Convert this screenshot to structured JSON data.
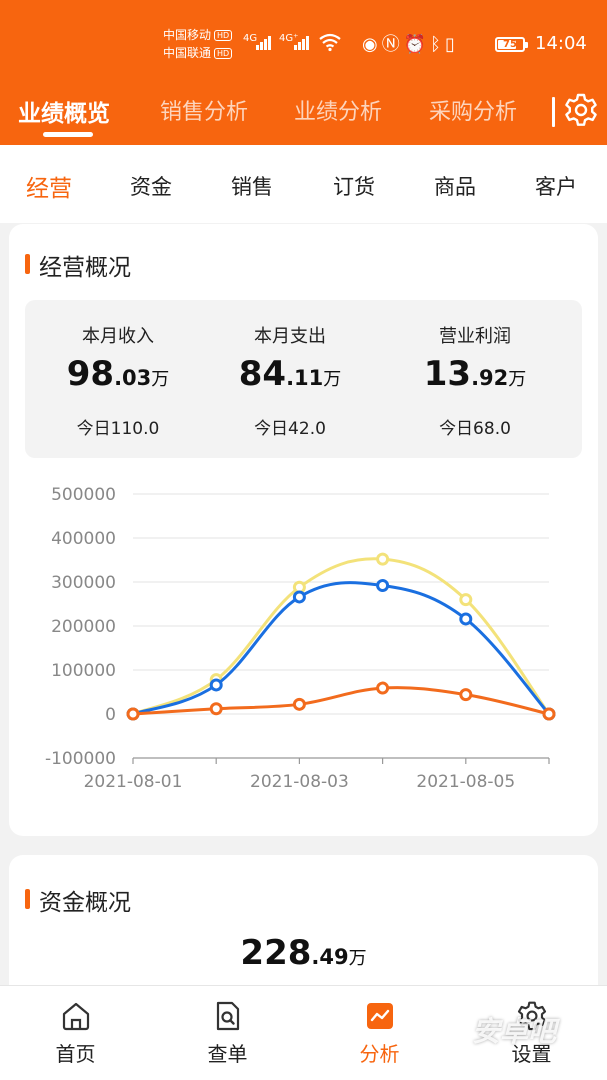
{
  "status_bar": {
    "carrier1": "中国移动",
    "carrier2": "中国联通",
    "hd": "HD",
    "net1": "4G",
    "net2": "4G⁺",
    "battery": "75",
    "time": "14:04",
    "icons": [
      "eye-icon",
      "nfc-icon",
      "alarm-icon",
      "bluetooth-icon",
      "vibrate-icon"
    ]
  },
  "top_tabs": [
    {
      "label": "业绩概览",
      "active": true
    },
    {
      "label": "销售分析",
      "active": false
    },
    {
      "label": "业绩分析",
      "active": false
    },
    {
      "label": "采购分析",
      "active": false
    }
  ],
  "sub_tabs": [
    {
      "label": "经营",
      "active": true
    },
    {
      "label": "资金",
      "active": false
    },
    {
      "label": "销售",
      "active": false
    },
    {
      "label": "订货",
      "active": false
    },
    {
      "label": "商品",
      "active": false
    },
    {
      "label": "客户",
      "active": false
    }
  ],
  "overview": {
    "title": "经营概况",
    "stats": [
      {
        "label": "本月收入",
        "int": "98",
        "dec": ".03",
        "unit": "万",
        "today": "今日110.0"
      },
      {
        "label": "本月支出",
        "int": "84",
        "dec": ".11",
        "unit": "万",
        "today": "今日42.0"
      },
      {
        "label": "营业利润",
        "int": "13",
        "dec": ".92",
        "unit": "万",
        "today": "今日68.0"
      }
    ]
  },
  "chart_data": {
    "type": "line",
    "x": [
      "2021-08-01",
      "2021-08-02",
      "2021-08-03",
      "2021-08-04",
      "2021-08-05",
      "2021-08-06"
    ],
    "xtick_labels": [
      "2021-08-01",
      "",
      "2021-08-03",
      "",
      "2021-08-05",
      ""
    ],
    "ylim": [
      -100000,
      500000
    ],
    "yticks": [
      "500000",
      "400000",
      "300000",
      "200000",
      "100000",
      "0",
      "-100000"
    ],
    "grid": true,
    "series": [
      {
        "color": "#f3e27a",
        "markers": false,
        "values": [
          0,
          78000,
          288000,
          352000,
          260000,
          0
        ]
      },
      {
        "color": "#1a6fe0",
        "markers": true,
        "values": [
          0,
          66000,
          266000,
          292000,
          216000,
          0
        ]
      },
      {
        "color": "#f26b1d",
        "markers": true,
        "values": [
          0,
          12000,
          22000,
          59000,
          44000,
          0
        ]
      }
    ]
  },
  "funds": {
    "title": "资金概况",
    "int": "228",
    "dec": ".49",
    "unit": "万"
  },
  "bottom_nav": [
    {
      "label": "首页",
      "icon": "home-icon",
      "active": false
    },
    {
      "label": "查单",
      "icon": "search-document-icon",
      "active": false
    },
    {
      "label": "分析",
      "icon": "analysis-icon",
      "active": true
    },
    {
      "label": "设置",
      "icon": "settings-icon",
      "active": false
    }
  ],
  "watermark": "安卓吧",
  "colors": {
    "accent": "#f7650f",
    "card_bg": "#ffffff",
    "page_bg": "#f2f2f2"
  }
}
